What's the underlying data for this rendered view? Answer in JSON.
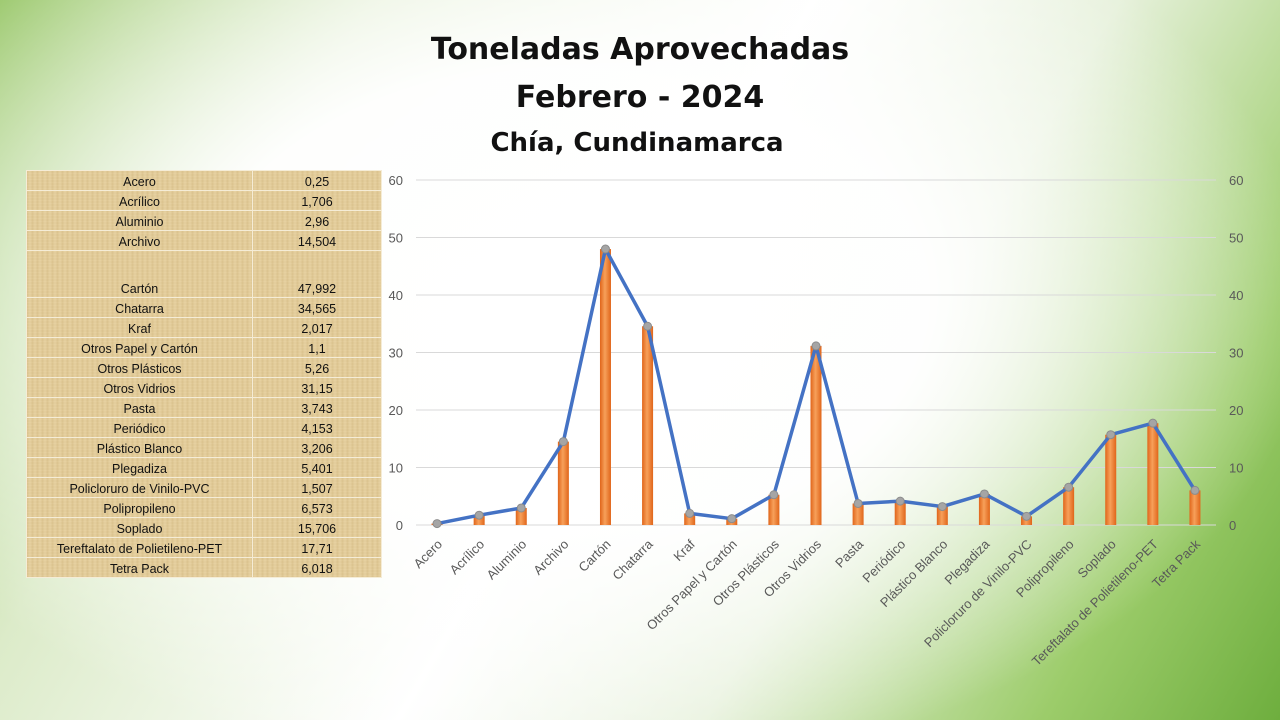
{
  "header": {
    "title_line1": "Toneladas Aprovechadas",
    "title_line2": "Febrero - 2024",
    "subtitle": "Chía, Cundinamarca"
  },
  "table": {
    "rows": [
      {
        "name": "Acero",
        "value": "0,25"
      },
      {
        "name": "Acrílico",
        "value": "1,706"
      },
      {
        "name": "Aluminio",
        "value": "2,96"
      },
      {
        "name": "Archivo",
        "value": "14,504"
      },
      {
        "name": "Cartón",
        "value": "47,992"
      },
      {
        "name": "Chatarra",
        "value": "34,565"
      },
      {
        "name": "Kraf",
        "value": "2,017"
      },
      {
        "name": "Otros Papel y Cartón",
        "value": "1,1"
      },
      {
        "name": "Otros Plásticos",
        "value": "5,26"
      },
      {
        "name": "Otros Vidrios",
        "value": "31,15"
      },
      {
        "name": "Pasta",
        "value": "3,743"
      },
      {
        "name": "Periódico",
        "value": "4,153"
      },
      {
        "name": "Plástico Blanco",
        "value": "3,206"
      },
      {
        "name": "Plegadiza",
        "value": "5,401"
      },
      {
        "name": "Policloruro de Vinilo-PVC",
        "value": "1,507"
      },
      {
        "name": "Polipropileno",
        "value": "6,573"
      },
      {
        "name": "Soplado",
        "value": "15,706"
      },
      {
        "name": "Tereftalato de Polietileno-PET",
        "value": "17,71"
      },
      {
        "name": "Tetra Pack",
        "value": "6,018"
      }
    ]
  },
  "colors": {
    "bar_top": "#f7a05a",
    "bar_bottom": "#e0651a",
    "line": "#4472c4",
    "marker": "#a5a5a5",
    "grid": "#d9d9d9",
    "tick_text": "#595959"
  },
  "chart_data": {
    "type": "bar",
    "categories": [
      "Acero",
      "Acrílico",
      "Aluminio",
      "Archivo",
      "Cartón",
      "Chatarra",
      "Kraf",
      "Otros Papel y Cartón",
      "Otros Plásticos",
      "Otros Vidrios",
      "Pasta",
      "Periódico",
      "Plástico Blanco",
      "Plegadiza",
      "Policloruro de Vinilo-PVC",
      "Polipropileno",
      "Soplado",
      "Tereftalato de Polietileno-PET",
      "Tetra Pack"
    ],
    "series": [
      {
        "type": "bar",
        "values": [
          0.25,
          1.706,
          2.96,
          14.504,
          47.992,
          34.565,
          2.017,
          1.1,
          5.26,
          31.15,
          3.743,
          4.153,
          3.206,
          5.401,
          1.507,
          6.573,
          15.706,
          17.71,
          6.018
        ]
      },
      {
        "type": "line",
        "values": [
          0.25,
          1.706,
          2.96,
          14.504,
          47.992,
          34.565,
          2.017,
          1.1,
          5.26,
          31.15,
          3.743,
          4.153,
          3.206,
          5.401,
          1.507,
          6.573,
          15.706,
          17.71,
          6.018
        ]
      }
    ],
    "yticks": [
      "0",
      "10",
      "20",
      "30",
      "40",
      "50",
      "60"
    ],
    "ylim": [
      0,
      60
    ],
    "secondary_axis": true,
    "grid": true,
    "title": "",
    "xlabel": "",
    "ylabel": ""
  }
}
